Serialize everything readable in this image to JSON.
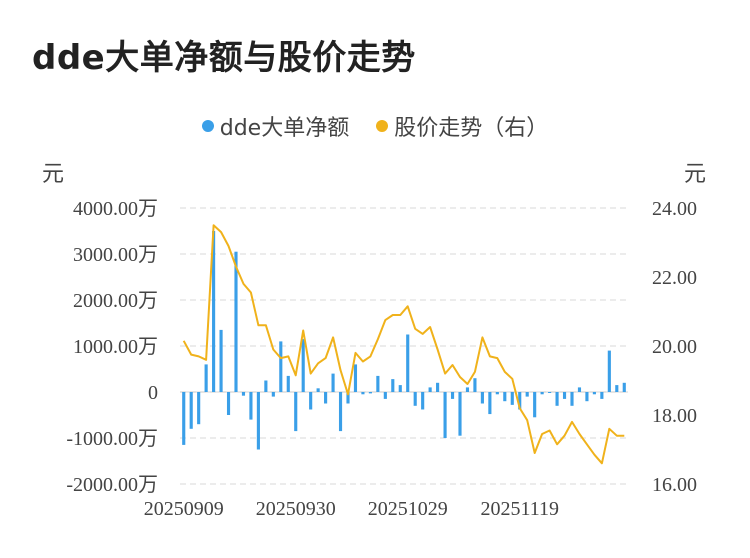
{
  "title": "dde大单净额与股价走势",
  "legend": {
    "items": [
      {
        "label": "dde大单净额",
        "color": "#3a9fe8"
      },
      {
        "label": "股价走势（右）",
        "color": "#f0b21b"
      }
    ]
  },
  "units": {
    "left": "元",
    "right": "元"
  },
  "colors": {
    "bar": "#3a9fe8",
    "line": "#f0b21b",
    "grid": "#e6e6e6"
  },
  "chart_data": {
    "type": "bar",
    "title": "dde大单净额与股价走势",
    "left_axis": {
      "ticks": [
        "4000.00万",
        "3000.00万",
        "2000.00万",
        "1000.00万",
        "0",
        "-1000.00万",
        "-2000.00万"
      ],
      "range": [
        -2000,
        4000
      ],
      "unit": "万元"
    },
    "right_axis": {
      "ticks": [
        "24.00",
        "22.00",
        "20.00",
        "18.00",
        "16.00"
      ],
      "range": [
        16,
        24
      ]
    },
    "x_tick_labels": [
      "20250909",
      "20250930",
      "20251029",
      "20251119"
    ],
    "x_tick_index": [
      0,
      15,
      30,
      45
    ],
    "series": [
      {
        "name": "dde大单净额",
        "type": "bar",
        "unit": "万元",
        "values": [
          -1150,
          -800,
          -700,
          600,
          3500,
          1350,
          -500,
          3050,
          -80,
          -600,
          -1250,
          250,
          -100,
          1100,
          350,
          -850,
          1150,
          -380,
          80,
          -250,
          400,
          -850,
          -250,
          600,
          -50,
          -30,
          350,
          -150,
          280,
          150,
          1250,
          -300,
          -380,
          100,
          200,
          -1000,
          -150,
          -950,
          100,
          300,
          -250,
          -480,
          -50,
          -200,
          -280,
          -380,
          -100,
          -550,
          -50,
          -20,
          -300,
          -150,
          -300,
          100,
          -200,
          -50,
          -150,
          900,
          150,
          200
        ],
        "color": "#3a9fe8"
      },
      {
        "name": "股价走势（右）",
        "type": "line",
        "axis": "right",
        "values": [
          20.15,
          19.75,
          19.7,
          19.6,
          23.5,
          23.3,
          22.9,
          22.3,
          21.8,
          21.55,
          20.6,
          20.6,
          19.9,
          19.65,
          19.7,
          19.15,
          20.45,
          19.2,
          19.5,
          19.65,
          20.25,
          19.3,
          18.6,
          19.8,
          19.55,
          19.7,
          20.2,
          20.75,
          20.9,
          20.9,
          21.15,
          20.5,
          20.35,
          20.55,
          19.9,
          19.2,
          19.45,
          19.1,
          18.9,
          19.25,
          20.25,
          19.7,
          19.65,
          19.25,
          19.05,
          18.2,
          17.85,
          16.9,
          17.45,
          17.55,
          17.15,
          17.4,
          17.8,
          17.45,
          17.15,
          16.85,
          16.6,
          17.6,
          17.4,
          17.4
        ],
        "color": "#f0b21b"
      }
    ],
    "grid": true,
    "legend_position": "top-center"
  }
}
